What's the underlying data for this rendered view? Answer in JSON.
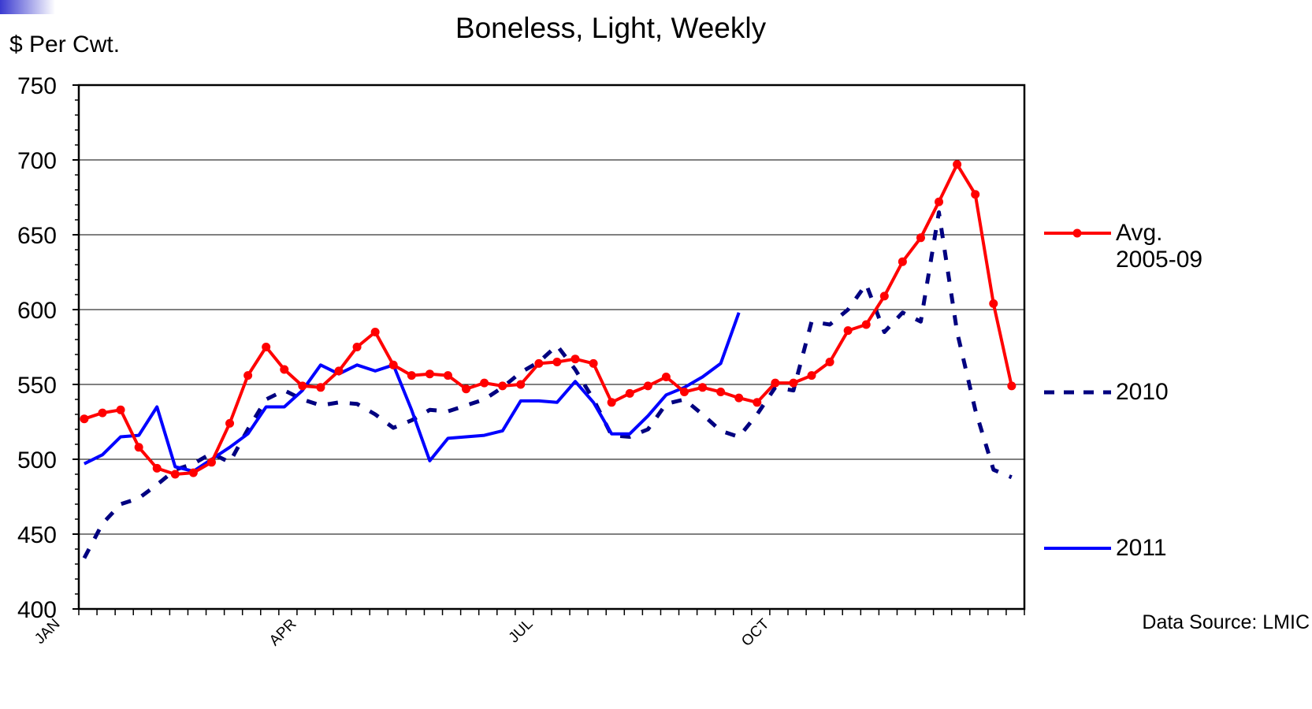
{
  "chart_data": {
    "type": "line",
    "title": "Boneless, Light, Weekly",
    "y_label": "$ Per Cwt.",
    "source": "Data Source: LMIC",
    "categories": [
      "JAN",
      null,
      null,
      null,
      null,
      null,
      null,
      null,
      null,
      null,
      null,
      null,
      null,
      "APR",
      null,
      null,
      null,
      null,
      null,
      null,
      null,
      null,
      null,
      null,
      null,
      null,
      "JUL",
      null,
      null,
      null,
      null,
      null,
      null,
      null,
      null,
      null,
      null,
      null,
      null,
      "OCT",
      null,
      null,
      null,
      null,
      null,
      null,
      null,
      null,
      null,
      null,
      null,
      null
    ],
    "ylim": [
      400,
      750
    ],
    "yticks": [
      400,
      450,
      500,
      550,
      600,
      650,
      700,
      750
    ],
    "grid": true,
    "legend": "right",
    "series": [
      {
        "name": "Avg. 2005-09",
        "color": "#ff0000",
        "style": "solid-markers",
        "values": [
          527,
          531,
          533,
          508,
          494,
          490,
          491,
          498,
          524,
          556,
          575,
          560,
          549,
          548,
          559,
          575,
          585,
          563,
          556,
          557,
          556,
          547,
          551,
          549,
          550,
          564,
          565,
          567,
          564,
          538,
          544,
          549,
          555,
          545,
          548,
          545,
          541,
          538,
          551,
          551,
          556,
          565,
          586,
          590,
          609,
          632,
          648,
          672,
          697,
          677,
          604,
          549
        ]
      },
      {
        "name": "2010",
        "color": "#000080",
        "style": "dashed",
        "values": [
          434,
          457,
          470,
          474,
          483,
          493,
          497,
          504,
          498,
          520,
          540,
          546,
          540,
          536,
          538,
          537,
          530,
          521,
          526,
          533,
          532,
          536,
          540,
          548,
          558,
          565,
          576,
          560,
          540,
          516,
          515,
          520,
          537,
          540,
          530,
          519,
          515,
          530,
          548,
          546,
          592,
          590,
          600,
          617,
          585,
          598,
          592,
          665,
          585,
          533,
          493,
          488
        ]
      },
      {
        "name": "2011",
        "color": "#0000ff",
        "style": "solid",
        "values": [
          497,
          503,
          515,
          516,
          535,
          495,
          492,
          500,
          508,
          517,
          535,
          535,
          546,
          563,
          557,
          563,
          559,
          563,
          533,
          499,
          514,
          515,
          516,
          519,
          539,
          539,
          538,
          552,
          538,
          517,
          517,
          529,
          543,
          548,
          555,
          564,
          598,
          null,
          null,
          null,
          null,
          null,
          null,
          null,
          null,
          null,
          null,
          null,
          null,
          null,
          null,
          null
        ]
      }
    ]
  }
}
